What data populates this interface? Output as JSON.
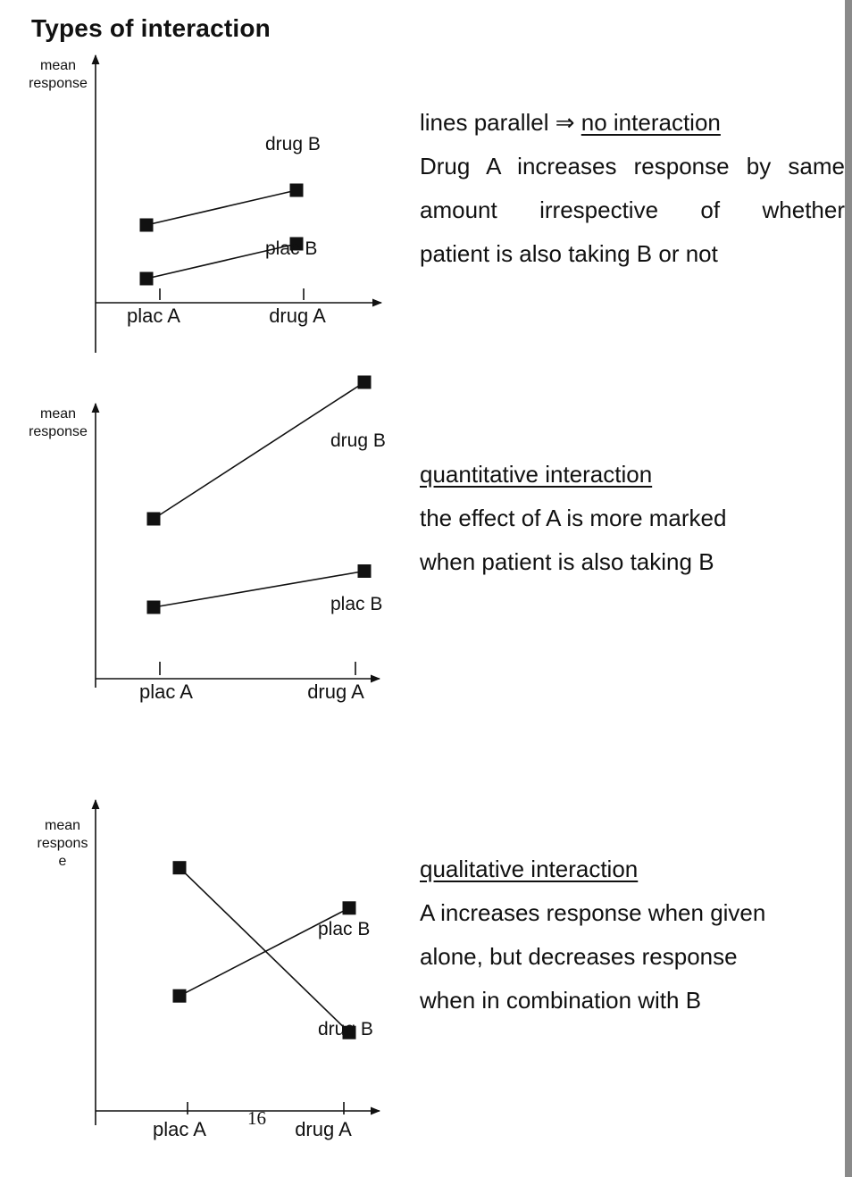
{
  "title": "Types of interaction",
  "page_number": "16",
  "panels": [
    {
      "y_label": [
        "mean",
        "response"
      ],
      "x_ticks": [
        "plac A",
        "drug A"
      ],
      "series": [
        {
          "name": "drug B",
          "values": [
            2.6,
            3.9
          ]
        },
        {
          "name": "plac B",
          "values": [
            0.6,
            1.9
          ]
        }
      ],
      "text": {
        "heading_prefix": "lines parallel ⇒ ",
        "heading": "no interaction",
        "line1": "Drug A increases response by same",
        "line2": "amount irrespective of whether",
        "line3": "patient is also taking B or not"
      }
    },
    {
      "y_label": [
        "mean",
        "response"
      ],
      "x_ticks": [
        "plac A",
        "drug A"
      ],
      "series": [
        {
          "name": "drug B",
          "values": [
            3.8,
            7.2
          ]
        },
        {
          "name": "plac B",
          "values": [
            1.6,
            2.5
          ]
        }
      ],
      "text": {
        "heading": "quantitative interaction",
        "line1": "the effect of A is more marked",
        "line2": "when patient is also taking B"
      }
    },
    {
      "y_label": [
        "mean",
        "respons",
        "e"
      ],
      "x_ticks": [
        "plac A",
        "drug A"
      ],
      "series": [
        {
          "name": "drug B",
          "values": [
            6.3,
            1.8
          ]
        },
        {
          "name": "plac B",
          "values": [
            2.8,
            5.2
          ]
        }
      ],
      "text": {
        "heading": "qualitative interaction",
        "line1": "A increases response when given",
        "line2": "alone, but decreases response",
        "line3": "when in combination with B"
      }
    }
  ]
}
